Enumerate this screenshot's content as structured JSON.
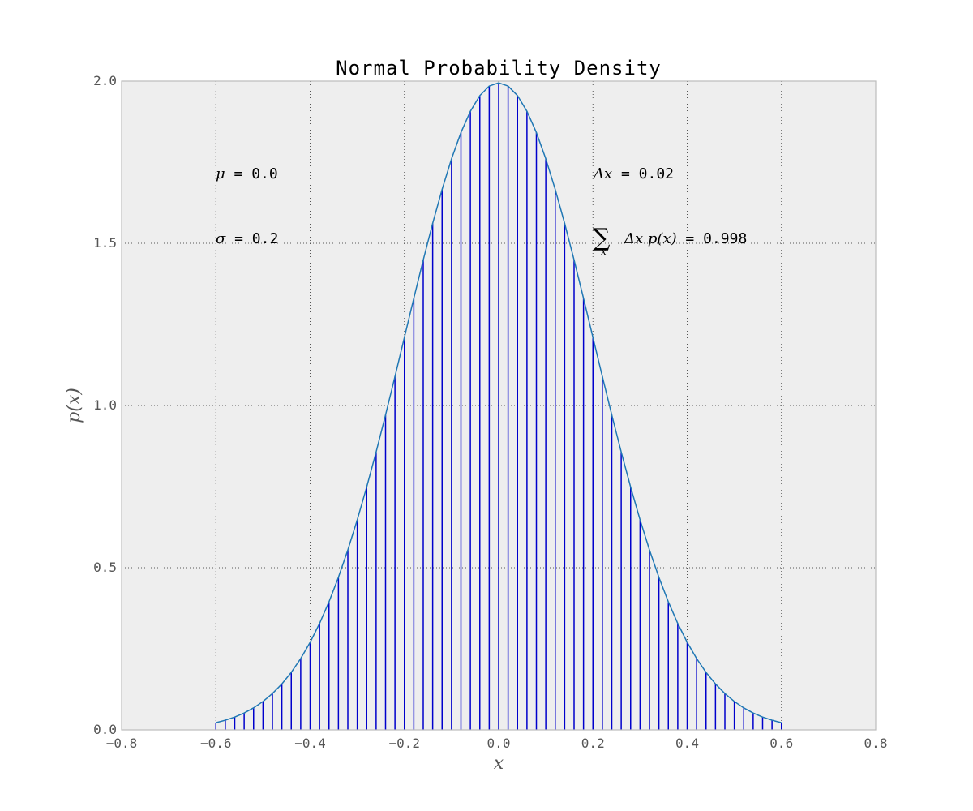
{
  "chart_data": {
    "type": "line",
    "title": "Normal Probability Density",
    "xlabel": "x",
    "ylabel": "p(x)",
    "xlim": [
      -0.8,
      0.8
    ],
    "ylim": [
      0.0,
      2.0
    ],
    "xticks": [
      "−0.8",
      "−0.6",
      "−0.4",
      "−0.2",
      "0.0",
      "0.2",
      "0.4",
      "0.6",
      "0.8"
    ],
    "yticks": [
      "0.0",
      "0.5",
      "1.0",
      "1.5",
      "2.0"
    ],
    "grid": true,
    "series": [
      {
        "kind": "density-curve",
        "color": "#1f77b4",
        "mu": 0.0,
        "sigma": 0.2,
        "x_range": [
          -0.6,
          0.6
        ],
        "step": 0.02
      },
      {
        "kind": "vertical-stems",
        "color": "#0000cc",
        "x_range": [
          -0.6,
          0.6
        ],
        "step": 0.02
      }
    ],
    "annotations": {
      "mu_symbol": "μ",
      "mu_value": " = 0.0",
      "sigma_symbol": "σ",
      "sigma_value": " = 0.2",
      "dx_symbol": "Δx",
      "dx_value": " = 0.02",
      "sum_symbol": "∑",
      "sum_sub": "x",
      "sum_term": "Δx  p(x)",
      "sum_value": " = 0.998"
    },
    "colors": {
      "axes_bg": "#eeeeee",
      "axes_border": "#bcbcbc",
      "grid": "#555555"
    }
  }
}
